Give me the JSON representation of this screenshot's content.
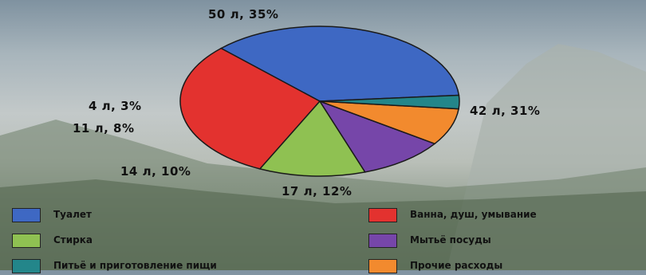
{
  "chart_data": {
    "type": "pie",
    "title": "",
    "slices": [
      {
        "name": "Туалет",
        "value": 50,
        "unit": "л",
        "percent": 35,
        "label": "50 л, 35%",
        "color": "#3e68c3"
      },
      {
        "name": "Ванна, душ, умывание",
        "value": 42,
        "unit": "л",
        "percent": 31,
        "label": "42 л, 31%",
        "color": "#e3322f"
      },
      {
        "name": "Стирка",
        "value": 17,
        "unit": "л",
        "percent": 12,
        "label": "17 л, 12%",
        "color": "#8fc152"
      },
      {
        "name": "Мытьё посуды",
        "value": 14,
        "unit": "л",
        "percent": 10,
        "label": "14 л, 10%",
        "color": "#7646a9"
      },
      {
        "name": "Прочие расходы",
        "value": 11,
        "unit": "л",
        "percent": 8,
        "label": "11 л, 8%",
        "color": "#f28a2e"
      },
      {
        "name": "Питьё и приготовление пищи",
        "value": 4,
        "unit": "л",
        "percent": 3,
        "label": "4 л, 3%",
        "color": "#23868a"
      }
    ],
    "legend_position": "bottom",
    "legend_order": [
      "Туалет",
      "Ванна, душ, умывание",
      "Стирка",
      "Мытьё посуды",
      "Питьё и приготовление пищи",
      "Прочие расходы"
    ]
  }
}
